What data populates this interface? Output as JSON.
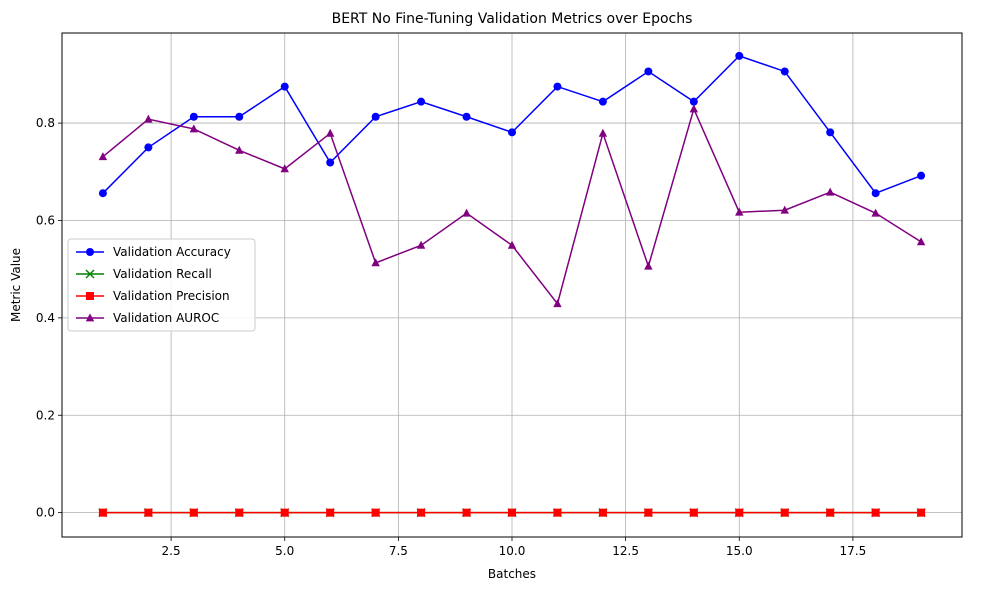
{
  "chart_data": {
    "type": "line",
    "title": "BERT No Fine-Tuning Validation Metrics over Epochs",
    "xlabel": "Batches",
    "ylabel": "Metric Value",
    "xlim": [
      0.1,
      19.9
    ],
    "ylim": [
      -0.05,
      0.985
    ],
    "xticks": [
      2.5,
      5.0,
      7.5,
      10.0,
      12.5,
      15.0,
      17.5
    ],
    "xtick_labels": [
      "2.5",
      "5.0",
      "7.5",
      "10.0",
      "12.5",
      "15.0",
      "17.5"
    ],
    "yticks": [
      0.0,
      0.2,
      0.4,
      0.6,
      0.8
    ],
    "ytick_labels": [
      "0.0",
      "0.2",
      "0.4",
      "0.6",
      "0.8"
    ],
    "grid": true,
    "legend_position": "center-left",
    "x": [
      1,
      2,
      3,
      4,
      5,
      6,
      7,
      8,
      9,
      10,
      11,
      12,
      13,
      14,
      15,
      16,
      17,
      18,
      19
    ],
    "series": [
      {
        "name": "Validation Accuracy",
        "color": "#0000ff",
        "marker": "circle",
        "values": [
          0.656,
          0.75,
          0.813,
          0.813,
          0.875,
          0.719,
          0.813,
          0.844,
          0.813,
          0.781,
          0.875,
          0.844,
          0.906,
          0.844,
          0.938,
          0.906,
          0.781,
          0.656,
          0.692
        ]
      },
      {
        "name": "Validation Recall",
        "color": "#008000",
        "marker": "x",
        "values": [
          0,
          0,
          0,
          0,
          0,
          0,
          0,
          0,
          0,
          0,
          0,
          0,
          0,
          0,
          0,
          0,
          0,
          0,
          0
        ]
      },
      {
        "name": "Validation Precision",
        "color": "#ff0000",
        "marker": "square",
        "values": [
          0,
          0,
          0,
          0,
          0,
          0,
          0,
          0,
          0,
          0,
          0,
          0,
          0,
          0,
          0,
          0,
          0,
          0,
          0
        ]
      },
      {
        "name": "Validation AUROC",
        "color": "#800080",
        "marker": "triangle",
        "values": [
          0.731,
          0.808,
          0.788,
          0.744,
          0.706,
          0.779,
          0.513,
          0.549,
          0.615,
          0.549,
          0.429,
          0.779,
          0.506,
          0.829,
          0.617,
          0.621,
          0.658,
          0.615,
          0.556
        ]
      }
    ]
  }
}
